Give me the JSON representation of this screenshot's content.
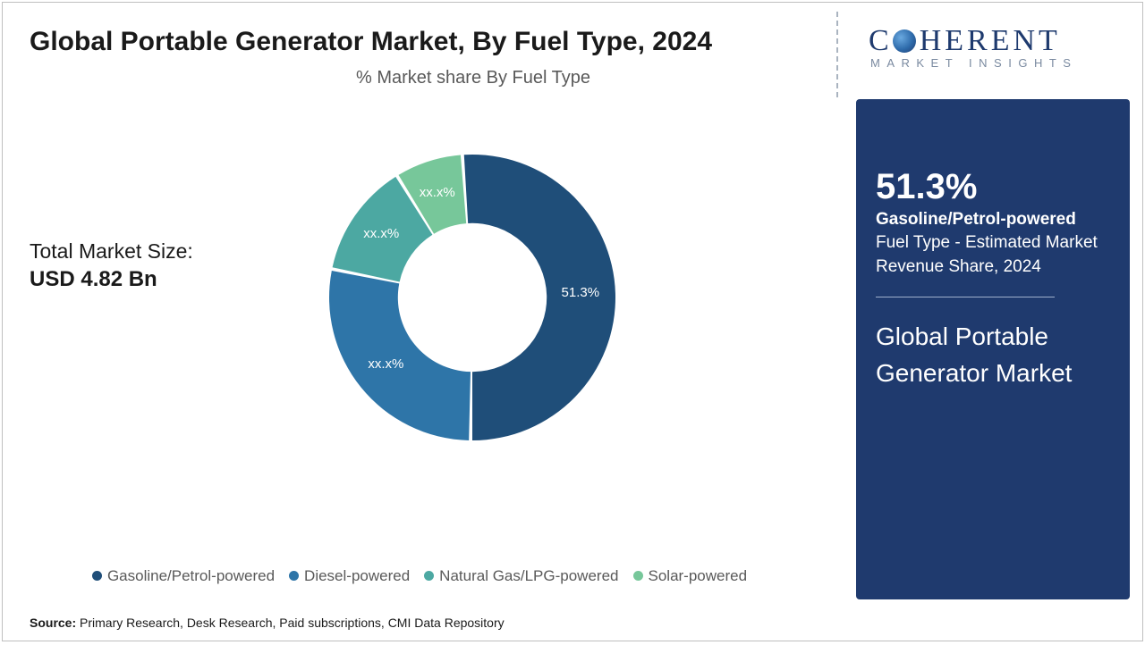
{
  "title": "Global Portable Generator Market, By Fuel Type, 2024",
  "chart": {
    "type": "donut",
    "subtitle": "% Market share By Fuel Type",
    "inner_radius_pct": 52,
    "background_color": "#ffffff",
    "segments": [
      {
        "name": "Gasoline/Petrol-powered",
        "value": 51.3,
        "label": "51.3%",
        "color": "#1f4e79"
      },
      {
        "name": "Diesel-powered",
        "value": 28.0,
        "label": "xx.x%",
        "color": "#2e75a8"
      },
      {
        "name": "Natural Gas/LPG-powered",
        "value": 13.0,
        "label": "xx.x%",
        "color": "#4ca8a2"
      },
      {
        "name": "Solar-powered",
        "value": 7.7,
        "label": "xx.x%",
        "color": "#77c79a"
      }
    ],
    "label_color": "#ffffff",
    "label_fontsize": 15,
    "start_angle_deg": -4
  },
  "market_size": {
    "label": "Total Market Size:",
    "value": "USD 4.82 Bn"
  },
  "legend_items": [
    {
      "label": "Gasoline/Petrol-powered",
      "color": "#1f4e79"
    },
    {
      "label": "Diesel-powered",
      "color": "#2e75a8"
    },
    {
      "label": "Natural Gas/LPG-powered",
      "color": "#4ca8a2"
    },
    {
      "label": "Solar-powered",
      "color": "#77c79a"
    }
  ],
  "source": {
    "prefix": "Source:",
    "text": "Primary Research, Desk Research, Paid subscriptions, CMI Data Repository"
  },
  "logo": {
    "brand_first": "C",
    "brand_rest": "HERENT",
    "tagline": "MARKET INSIGHTS"
  },
  "highlight_card": {
    "background": "#1f3a6e",
    "stat_value": "51.3%",
    "stat_primary": "Gasoline/Petrol-powered",
    "stat_secondary": "Fuel Type - Estimated Market Revenue Share, 2024",
    "card_title": "Global Portable Generator Market"
  }
}
